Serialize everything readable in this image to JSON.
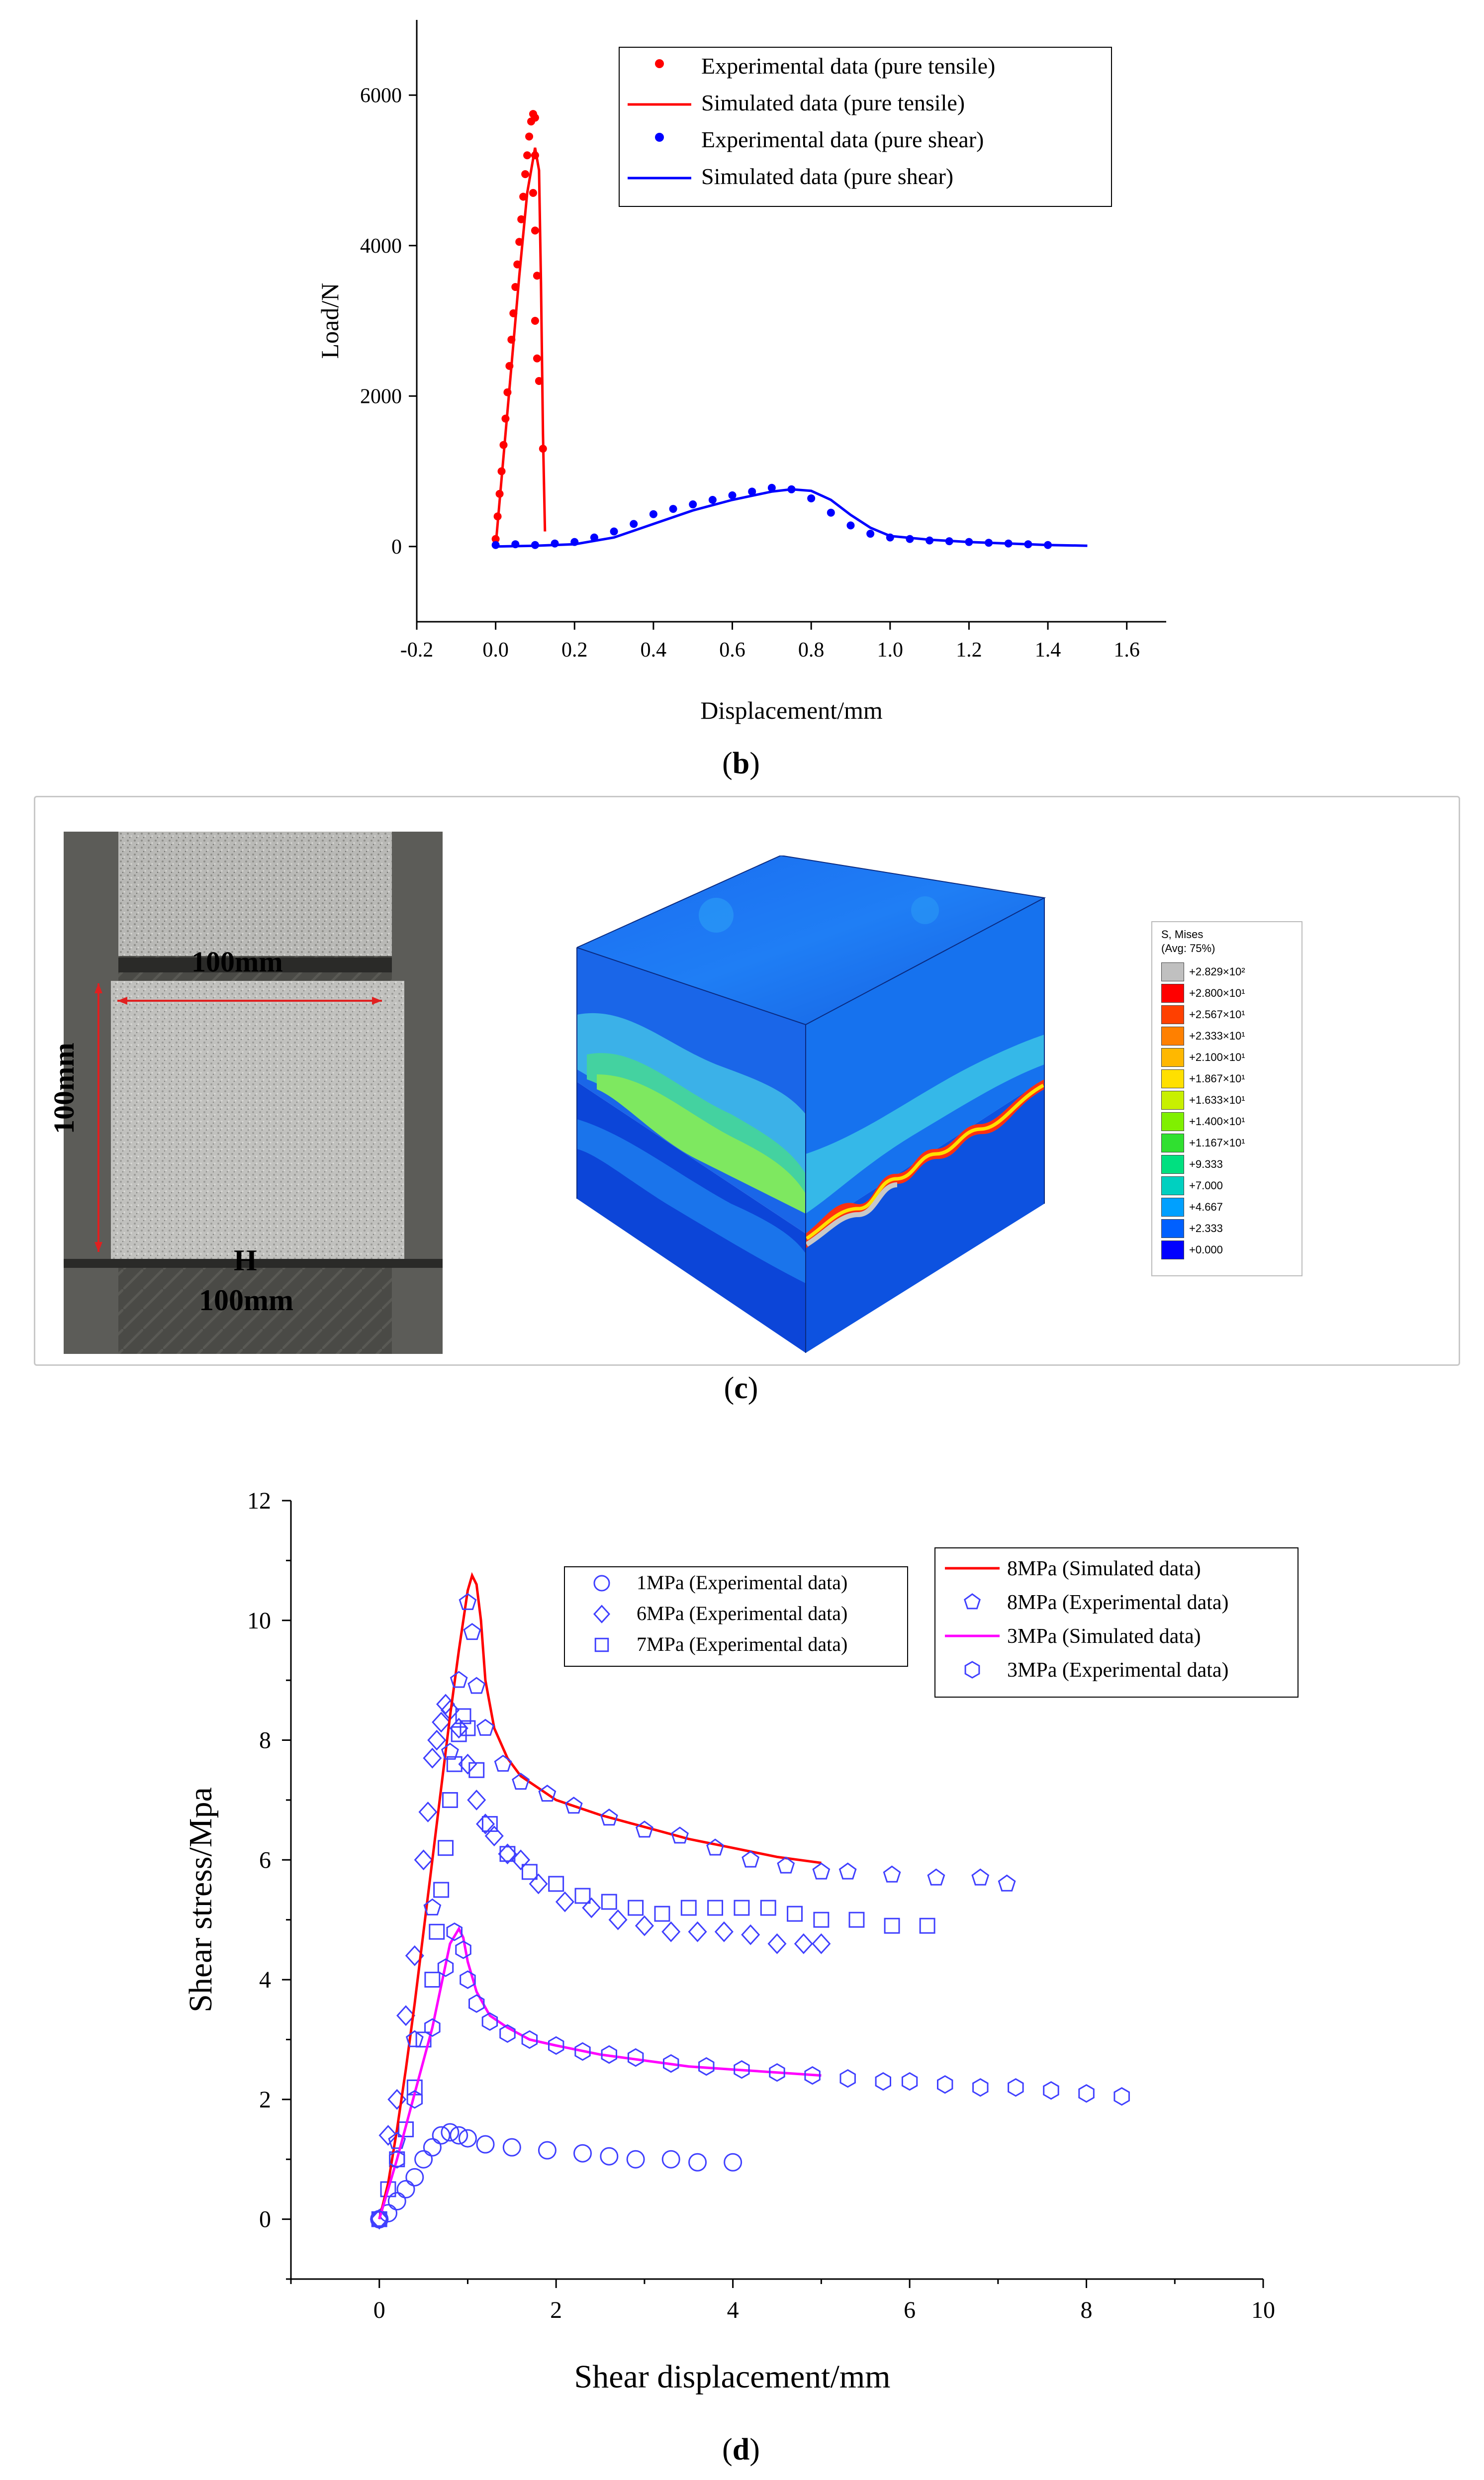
{
  "panel_b": {
    "caption": "b",
    "chart_data": {
      "type": "scatter",
      "xlabel": "Displacement/mm",
      "ylabel": "Load/N",
      "xlim": [
        -0.2,
        1.7
      ],
      "ylim": [
        -1000,
        7000
      ],
      "x_ticks": [
        "-0.2",
        "0.0",
        "0.2",
        "0.4",
        "0.6",
        "0.8",
        "1.0",
        "1.2",
        "1.4",
        "1.6"
      ],
      "y_ticks": [
        "0",
        "2000",
        "4000",
        "6000"
      ],
      "legend_position": "top-right",
      "series": [
        {
          "name": "Experimental data (pure tensile)",
          "kind": "points",
          "color": "#ff0000",
          "x": [
            0.0,
            0.005,
            0.01,
            0.015,
            0.02,
            0.025,
            0.03,
            0.035,
            0.04,
            0.045,
            0.05,
            0.055,
            0.06,
            0.065,
            0.07,
            0.075,
            0.08,
            0.085,
            0.09,
            0.095,
            0.1,
            0.1,
            0.095,
            0.1,
            0.105,
            0.1,
            0.105,
            0.11,
            0.12
          ],
          "y": [
            100,
            400,
            700,
            1000,
            1350,
            1700,
            2050,
            2400,
            2750,
            3100,
            3450,
            3750,
            4050,
            4350,
            4650,
            4950,
            5200,
            5450,
            5650,
            5750,
            5700,
            5200,
            4700,
            4200,
            3600,
            3000,
            2500,
            2200,
            1300
          ]
        },
        {
          "name": "Simulated data (pure tensile)",
          "kind": "line",
          "color": "#ff0000",
          "x": [
            0.0,
            0.02,
            0.04,
            0.06,
            0.08,
            0.1,
            0.11,
            0.115,
            0.12,
            0.125
          ],
          "y": [
            0,
            1200,
            2400,
            3600,
            4700,
            5300,
            5000,
            3500,
            1500,
            200
          ]
        },
        {
          "name": "Experimental data (pure shear)",
          "kind": "points",
          "color": "#0000ff",
          "x": [
            0.0,
            0.05,
            0.1,
            0.15,
            0.2,
            0.25,
            0.3,
            0.35,
            0.4,
            0.45,
            0.5,
            0.55,
            0.6,
            0.65,
            0.7,
            0.75,
            0.8,
            0.85,
            0.9,
            0.95,
            1.0,
            1.05,
            1.1,
            1.15,
            1.2,
            1.25,
            1.3,
            1.35,
            1.4
          ],
          "y": [
            20,
            30,
            20,
            40,
            60,
            120,
            200,
            300,
            430,
            500,
            560,
            620,
            680,
            730,
            780,
            760,
            640,
            450,
            280,
            170,
            120,
            100,
            80,
            70,
            60,
            50,
            40,
            30,
            20
          ]
        },
        {
          "name": "Simulated data (pure shear)",
          "kind": "line",
          "color": "#0000ff",
          "x": [
            0.0,
            0.1,
            0.2,
            0.3,
            0.4,
            0.5,
            0.6,
            0.7,
            0.75,
            0.8,
            0.85,
            0.9,
            0.95,
            1.0,
            1.1,
            1.2,
            1.3,
            1.4,
            1.5
          ],
          "y": [
            0,
            10,
            30,
            120,
            300,
            480,
            620,
            730,
            760,
            740,
            620,
            420,
            250,
            140,
            90,
            60,
            40,
            20,
            10
          ]
        }
      ]
    }
  },
  "panel_c": {
    "caption": "c",
    "photo_labels": {
      "width_label": "100mm",
      "height_label": "100mm",
      "h_letter": "H",
      "h_value": "100mm"
    },
    "legend": {
      "title_line1": "S, Mises",
      "title_line2": "(Avg: 75%)",
      "entries": [
        "+2.829×10²",
        "+2.800×10¹",
        "+2.567×10¹",
        "+2.333×10¹",
        "+2.100×10¹",
        "+1.867×10¹",
        "+1.633×10¹",
        "+1.400×10¹",
        "+1.167×10¹",
        "+9.333",
        "+7.000",
        "+4.667",
        "+2.333",
        "+0.000"
      ],
      "colors": [
        "#c0c0c0",
        "#ff0000",
        "#ff4000",
        "#ff8000",
        "#ffb800",
        "#ffe000",
        "#c8f000",
        "#80f000",
        "#30e030",
        "#00e080",
        "#00d0c0",
        "#00a0ff",
        "#0060ff",
        "#0000ff"
      ]
    }
  },
  "panel_d": {
    "caption": "d",
    "chart_data": {
      "type": "scatter",
      "xlabel": "Shear displacement/mm",
      "ylabel": "Shear stress/Mpa",
      "xlim": [
        -1,
        10
      ],
      "ylim": [
        -1,
        12
      ],
      "x_ticks": [
        "0",
        "2",
        "4",
        "6",
        "8",
        "10"
      ],
      "y_ticks": [
        "0",
        "2",
        "4",
        "6",
        "8",
        "10",
        "12"
      ],
      "series": [
        {
          "name": "1MPa (Experimental data)",
          "marker": "circle",
          "color": "#4040ff",
          "x": [
            0.0,
            0.1,
            0.2,
            0.3,
            0.4,
            0.5,
            0.6,
            0.7,
            0.8,
            0.9,
            1.0,
            1.2,
            1.5,
            1.9,
            2.3,
            2.6,
            2.9,
            3.3,
            3.6,
            4.0
          ],
          "y": [
            0.0,
            0.1,
            0.3,
            0.5,
            0.7,
            1.0,
            1.2,
            1.4,
            1.45,
            1.4,
            1.35,
            1.25,
            1.2,
            1.15,
            1.1,
            1.05,
            1.0,
            1.0,
            0.95,
            0.95
          ]
        },
        {
          "name": "6MPa (Experimental data)",
          "marker": "diamond",
          "color": "#4040ff",
          "x": [
            0.0,
            0.1,
            0.2,
            0.3,
            0.4,
            0.5,
            0.55,
            0.6,
            0.65,
            0.7,
            0.75,
            0.8,
            0.9,
            1.0,
            1.1,
            1.2,
            1.3,
            1.45,
            1.6,
            1.8,
            2.1,
            2.4,
            2.7,
            3.0,
            3.3,
            3.6,
            3.9,
            4.2,
            4.5,
            4.8,
            5.0
          ],
          "y": [
            0.0,
            1.4,
            2.0,
            3.4,
            4.4,
            6.0,
            6.8,
            7.7,
            8.0,
            8.3,
            8.6,
            8.5,
            8.2,
            7.6,
            7.0,
            6.6,
            6.4,
            6.1,
            6.0,
            5.6,
            5.3,
            5.2,
            5.0,
            4.9,
            4.8,
            4.8,
            4.8,
            4.75,
            4.6,
            4.6,
            4.6
          ]
        },
        {
          "name": "7MPa (Experimental data)",
          "marker": "square",
          "color": "#4040ff",
          "x": [
            0.0,
            0.1,
            0.2,
            0.3,
            0.4,
            0.5,
            0.6,
            0.65,
            0.7,
            0.75,
            0.8,
            0.85,
            0.9,
            0.95,
            1.0,
            1.1,
            1.25,
            1.45,
            1.7,
            2.0,
            2.3,
            2.6,
            2.9,
            3.2,
            3.5,
            3.8,
            4.1,
            4.4,
            4.7,
            5.0,
            5.4,
            5.8,
            6.2
          ],
          "y": [
            0.0,
            0.5,
            1.0,
            1.5,
            2.2,
            3.0,
            4.0,
            4.8,
            5.5,
            6.2,
            7.0,
            7.6,
            8.1,
            8.4,
            8.2,
            7.5,
            6.6,
            6.1,
            5.8,
            5.6,
            5.4,
            5.3,
            5.2,
            5.1,
            5.2,
            5.2,
            5.2,
            5.2,
            5.1,
            5.0,
            5.0,
            4.9,
            4.9
          ]
        },
        {
          "name": "8MPa (Simulated data)",
          "kind": "line",
          "color": "#ff0000",
          "x": [
            0.0,
            0.1,
            0.2,
            0.3,
            0.4,
            0.5,
            0.6,
            0.7,
            0.8,
            0.9,
            1.0,
            1.05,
            1.1,
            1.15,
            1.2,
            1.3,
            1.45,
            1.6,
            1.8,
            2.0,
            2.5,
            3.0,
            3.5,
            4.0,
            4.5,
            5.0
          ],
          "y": [
            0.0,
            0.6,
            1.5,
            2.5,
            3.6,
            4.8,
            6.0,
            7.2,
            8.4,
            9.5,
            10.5,
            10.75,
            10.6,
            10.0,
            9.0,
            8.2,
            7.7,
            7.4,
            7.2,
            7.0,
            6.75,
            6.55,
            6.35,
            6.2,
            6.05,
            5.95
          ]
        },
        {
          "name": "8MPa (Experimental data)",
          "marker": "pentagon",
          "color": "#4040ff",
          "x": [
            0.0,
            0.2,
            0.4,
            0.6,
            0.8,
            0.9,
            1.0,
            1.05,
            1.1,
            1.2,
            1.4,
            1.6,
            1.9,
            2.2,
            2.6,
            3.0,
            3.4,
            3.8,
            4.2,
            4.6,
            5.0,
            5.3,
            5.8,
            6.3,
            6.8,
            7.1
          ],
          "y": [
            0.0,
            1.3,
            3.0,
            5.2,
            7.8,
            9.0,
            10.3,
            9.8,
            8.9,
            8.2,
            7.6,
            7.3,
            7.1,
            6.9,
            6.7,
            6.5,
            6.4,
            6.2,
            6.0,
            5.9,
            5.8,
            5.8,
            5.75,
            5.7,
            5.7,
            5.6
          ]
        },
        {
          "name": "3MPa (Simulated data)",
          "kind": "line",
          "color": "#ff00ff",
          "x": [
            0.0,
            0.2,
            0.4,
            0.6,
            0.7,
            0.8,
            0.9,
            0.95,
            1.0,
            1.1,
            1.25,
            1.45,
            1.7,
            2.0,
            2.5,
            3.0,
            3.5,
            4.0,
            4.5,
            5.0
          ],
          "y": [
            0.0,
            1.0,
            2.1,
            3.2,
            3.9,
            4.6,
            4.85,
            4.7,
            4.3,
            3.8,
            3.4,
            3.2,
            3.0,
            2.9,
            2.75,
            2.65,
            2.55,
            2.5,
            2.45,
            2.4
          ]
        },
        {
          "name": "3MPa (Experimental data)",
          "marker": "hexagon",
          "color": "#4040ff",
          "x": [
            0.0,
            0.2,
            0.4,
            0.6,
            0.75,
            0.85,
            0.95,
            1.0,
            1.1,
            1.25,
            1.45,
            1.7,
            2.0,
            2.3,
            2.6,
            2.9,
            3.3,
            3.7,
            4.1,
            4.5,
            4.9,
            5.3,
            5.7,
            6.0,
            6.4,
            6.8,
            7.2,
            7.6,
            8.0,
            8.4
          ],
          "y": [
            0.0,
            1.0,
            2.0,
            3.2,
            4.2,
            4.8,
            4.5,
            4.0,
            3.6,
            3.3,
            3.1,
            3.0,
            2.9,
            2.8,
            2.75,
            2.7,
            2.6,
            2.55,
            2.5,
            2.45,
            2.4,
            2.35,
            2.3,
            2.3,
            2.25,
            2.2,
            2.2,
            2.15,
            2.1,
            2.05
          ]
        }
      ]
    }
  }
}
